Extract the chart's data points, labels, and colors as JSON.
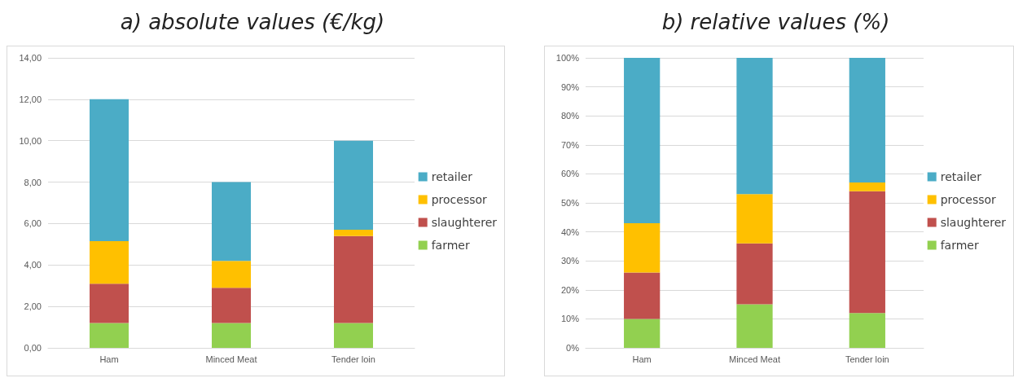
{
  "chart_data": [
    {
      "type": "bar",
      "stacked": true,
      "title": "a)  absolute values (€/kg)",
      "categories": [
        "Ham",
        "Minced Meat",
        "Tender loin"
      ],
      "series": [
        {
          "name": "farmer",
          "color": "#92d050",
          "values": [
            1.2,
            1.2,
            1.2
          ]
        },
        {
          "name": "slaughterer",
          "color": "#c0504d",
          "values": [
            1.9,
            1.7,
            4.2
          ]
        },
        {
          "name": "processor",
          "color": "#ffc000",
          "values": [
            2.05,
            1.3,
            0.3
          ]
        },
        {
          "name": "retailer",
          "color": "#4bacc6",
          "values": [
            6.85,
            3.8,
            4.3
          ]
        }
      ],
      "ylim": [
        0,
        14
      ],
      "yticks": [
        {
          "value": 0,
          "label": "0,00"
        },
        {
          "value": 2,
          "label": "2,00"
        },
        {
          "value": 4,
          "label": "4,00"
        },
        {
          "value": 6,
          "label": "6,00"
        },
        {
          "value": 8,
          "label": "8,00"
        },
        {
          "value": 10,
          "label": "10,00"
        },
        {
          "value": 12,
          "label": "12,00"
        },
        {
          "value": 14,
          "label": "14,00"
        }
      ],
      "grid": "y",
      "legend": "right"
    },
    {
      "type": "bar",
      "stacked": true,
      "title": "b)  relative values (%)",
      "categories": [
        "Ham",
        "Minced Meat",
        "Tender loin"
      ],
      "series": [
        {
          "name": "farmer",
          "color": "#92d050",
          "values": [
            10,
            15,
            12
          ]
        },
        {
          "name": "slaughterer",
          "color": "#c0504d",
          "values": [
            16,
            21,
            42
          ]
        },
        {
          "name": "processor",
          "color": "#ffc000",
          "values": [
            17,
            17,
            3
          ]
        },
        {
          "name": "retailer",
          "color": "#4bacc6",
          "values": [
            57,
            47,
            43
          ]
        }
      ],
      "ylim": [
        0,
        100
      ],
      "yticks": [
        {
          "value": 0,
          "label": "0%"
        },
        {
          "value": 10,
          "label": "10%"
        },
        {
          "value": 20,
          "label": "20%"
        },
        {
          "value": 30,
          "label": "30%"
        },
        {
          "value": 40,
          "label": "40%"
        },
        {
          "value": 50,
          "label": "50%"
        },
        {
          "value": 60,
          "label": "60%"
        },
        {
          "value": 70,
          "label": "70%"
        },
        {
          "value": 80,
          "label": "80%"
        },
        {
          "value": 90,
          "label": "90%"
        },
        {
          "value": 100,
          "label": "100%"
        }
      ],
      "grid": "y",
      "legend": "right"
    }
  ]
}
